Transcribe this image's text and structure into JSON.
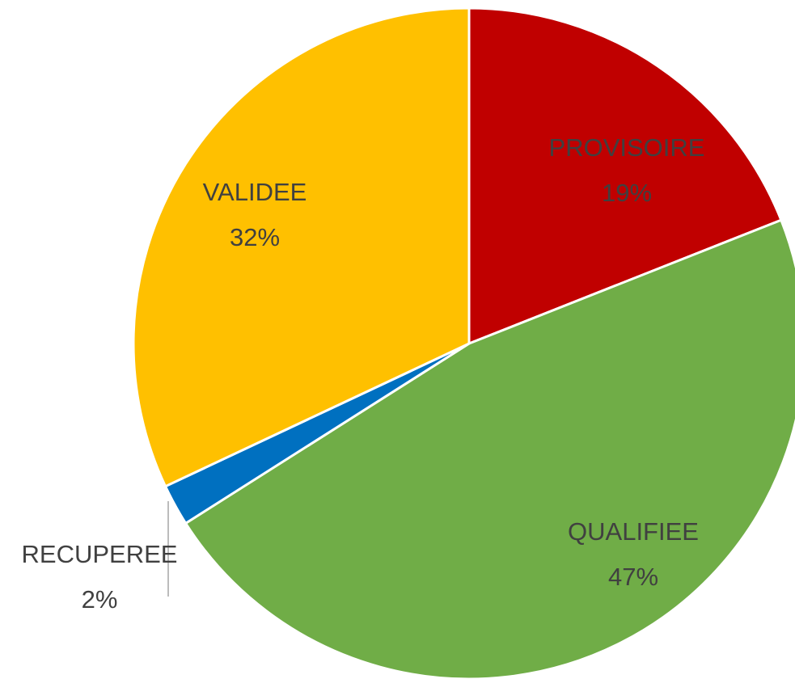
{
  "chart_data": {
    "type": "pie",
    "categories": [
      "PROVISOIRE",
      "QUALIFIEE",
      "RECUPEREE",
      "VALIDEE"
    ],
    "values": [
      19,
      47,
      2,
      32
    ],
    "value_labels": [
      "19%",
      "47%",
      "2%",
      "32%"
    ],
    "colors": [
      "#c00000",
      "#70ad47",
      "#0070c0",
      "#ffc000"
    ]
  }
}
